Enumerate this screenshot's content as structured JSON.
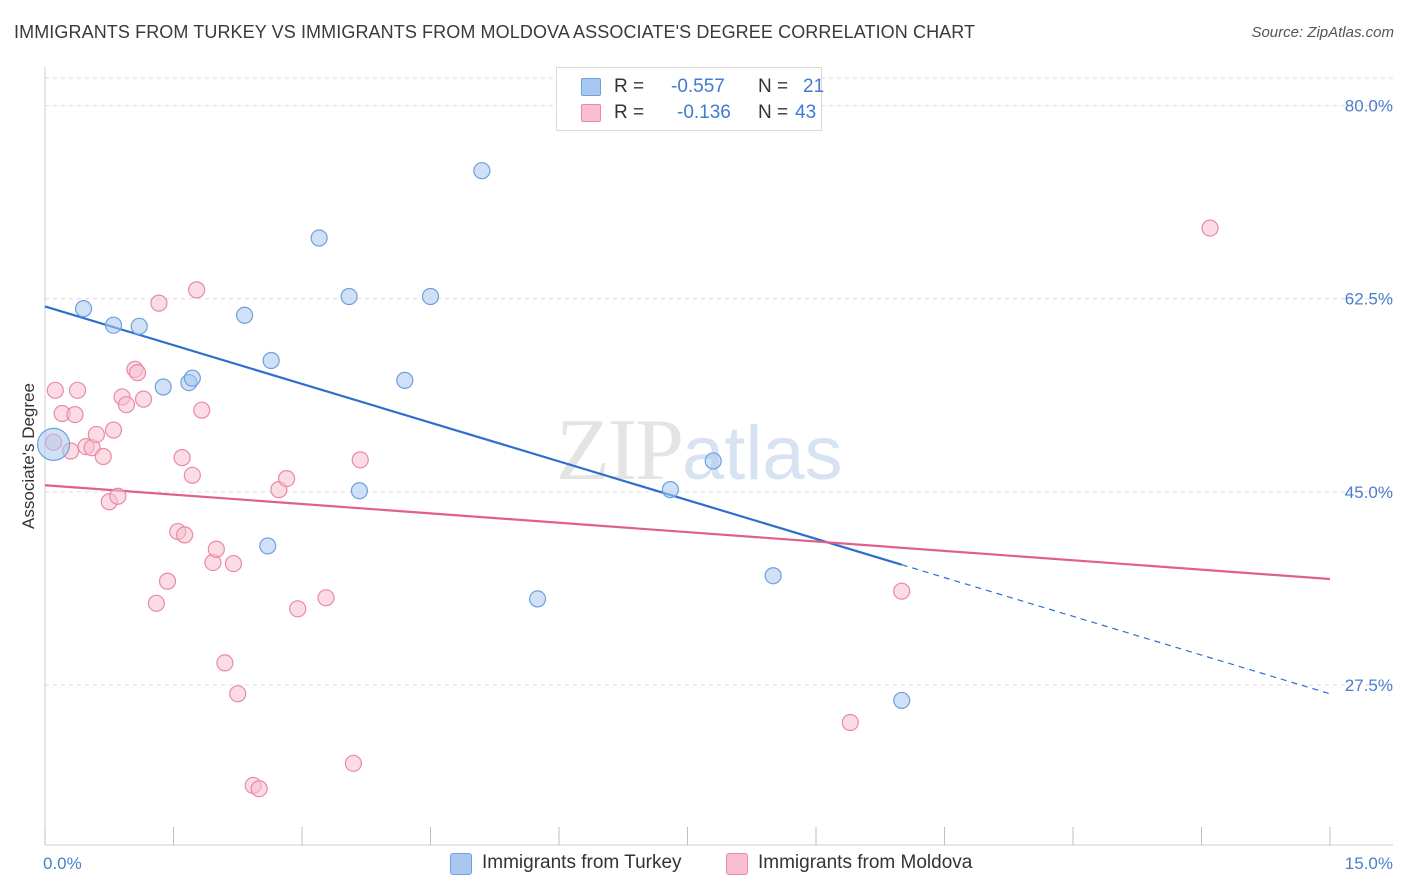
{
  "title": "IMMIGRANTS FROM TURKEY VS IMMIGRANTS FROM MOLDOVA ASSOCIATE'S DEGREE CORRELATION CHART",
  "source": "Source: ZipAtlas.com",
  "watermark": {
    "zip": "ZIP",
    "atlas": "atlas"
  },
  "stats": [
    {
      "r_label": "R =",
      "r_value": "-0.557",
      "n_label": "N =",
      "n_value": "21",
      "color": "#a9c8f0"
    },
    {
      "r_label": "R =",
      "r_value": "-0.136",
      "n_label": "N =",
      "n_value": "43",
      "color": "#f7bfd0"
    }
  ],
  "legend": [
    {
      "label": "Immigrants from Turkey",
      "color": "#a9c8f0"
    },
    {
      "label": "Immigrants from Moldova",
      "color": "#f7bfd0"
    }
  ],
  "chart_data": {
    "type": "scatter",
    "title": "IMMIGRANTS FROM TURKEY VS IMMIGRANTS FROM MOLDOVA ASSOCIATE'S DEGREE CORRELATION CHART",
    "xlabel": "",
    "ylabel": "Associate's Degree",
    "xlim": [
      0,
      15
    ],
    "ylim": [
      13,
      82.5
    ],
    "x_tick_labels": [
      "0.0%",
      "15.0%"
    ],
    "y_ticks": [
      27.5,
      45.0,
      62.5,
      80.0
    ],
    "y_tick_labels": [
      "27.5%",
      "45.0%",
      "62.5%",
      "80.0%"
    ],
    "grid": true,
    "legend_position": "bottom",
    "series": [
      {
        "name": "Immigrants from Turkey",
        "color": "#a9c8f0",
        "stroke": "#6f9fdc",
        "line_color": "#2e6fce",
        "trend": {
          "x0": 0.0,
          "y0": 61.8,
          "x1": 10.0,
          "y1": 38.4,
          "x_dash_end": 15.0,
          "y_dash_end": 26.7
        },
        "points": [
          [
            0.1,
            49.3
          ],
          [
            0.45,
            61.6
          ],
          [
            0.8,
            60.1
          ],
          [
            1.1,
            60.0
          ],
          [
            1.38,
            54.5
          ],
          [
            1.68,
            54.9
          ],
          [
            1.72,
            55.3
          ],
          [
            2.33,
            61.0
          ],
          [
            2.64,
            56.9
          ],
          [
            3.2,
            68.0
          ],
          [
            3.55,
            62.7
          ],
          [
            3.67,
            45.1
          ],
          [
            4.2,
            55.1
          ],
          [
            4.5,
            62.7
          ],
          [
            5.1,
            74.1
          ],
          [
            5.75,
            35.3
          ],
          [
            7.3,
            45.2
          ],
          [
            7.8,
            47.8
          ],
          [
            8.5,
            37.4
          ],
          [
            2.6,
            40.1
          ],
          [
            10.0,
            26.1
          ]
        ]
      },
      {
        "name": "Immigrants from Moldova",
        "color": "#f7bfd0",
        "stroke": "#e88aa6",
        "line_color": "#e0608c",
        "trend": {
          "x0": 0.0,
          "y0": 45.6,
          "x1": 15.0,
          "y1": 37.1
        },
        "points": [
          [
            0.1,
            49.5
          ],
          [
            0.12,
            54.2
          ],
          [
            0.2,
            52.1
          ],
          [
            0.3,
            48.7
          ],
          [
            0.35,
            52.0
          ],
          [
            0.38,
            54.2
          ],
          [
            0.48,
            49.1
          ],
          [
            0.55,
            49.0
          ],
          [
            0.6,
            50.2
          ],
          [
            0.68,
            48.2
          ],
          [
            0.75,
            44.1
          ],
          [
            0.8,
            50.6
          ],
          [
            0.85,
            44.6
          ],
          [
            0.9,
            53.6
          ],
          [
            0.95,
            52.9
          ],
          [
            1.05,
            56.1
          ],
          [
            1.08,
            55.8
          ],
          [
            1.15,
            53.4
          ],
          [
            1.3,
            34.9
          ],
          [
            1.33,
            62.1
          ],
          [
            1.43,
            36.9
          ],
          [
            1.55,
            41.4
          ],
          [
            1.6,
            48.1
          ],
          [
            1.63,
            41.1
          ],
          [
            1.72,
            46.5
          ],
          [
            1.77,
            63.3
          ],
          [
            1.83,
            52.4
          ],
          [
            1.96,
            38.6
          ],
          [
            2.0,
            39.8
          ],
          [
            2.1,
            29.5
          ],
          [
            2.2,
            38.5
          ],
          [
            2.25,
            26.7
          ],
          [
            2.43,
            18.4
          ],
          [
            2.5,
            18.1
          ],
          [
            2.73,
            45.2
          ],
          [
            2.82,
            46.2
          ],
          [
            2.95,
            34.4
          ],
          [
            3.28,
            35.4
          ],
          [
            3.6,
            20.4
          ],
          [
            3.68,
            47.9
          ],
          [
            9.4,
            24.1
          ],
          [
            10.0,
            36.0
          ],
          [
            13.6,
            68.9
          ]
        ]
      }
    ]
  }
}
